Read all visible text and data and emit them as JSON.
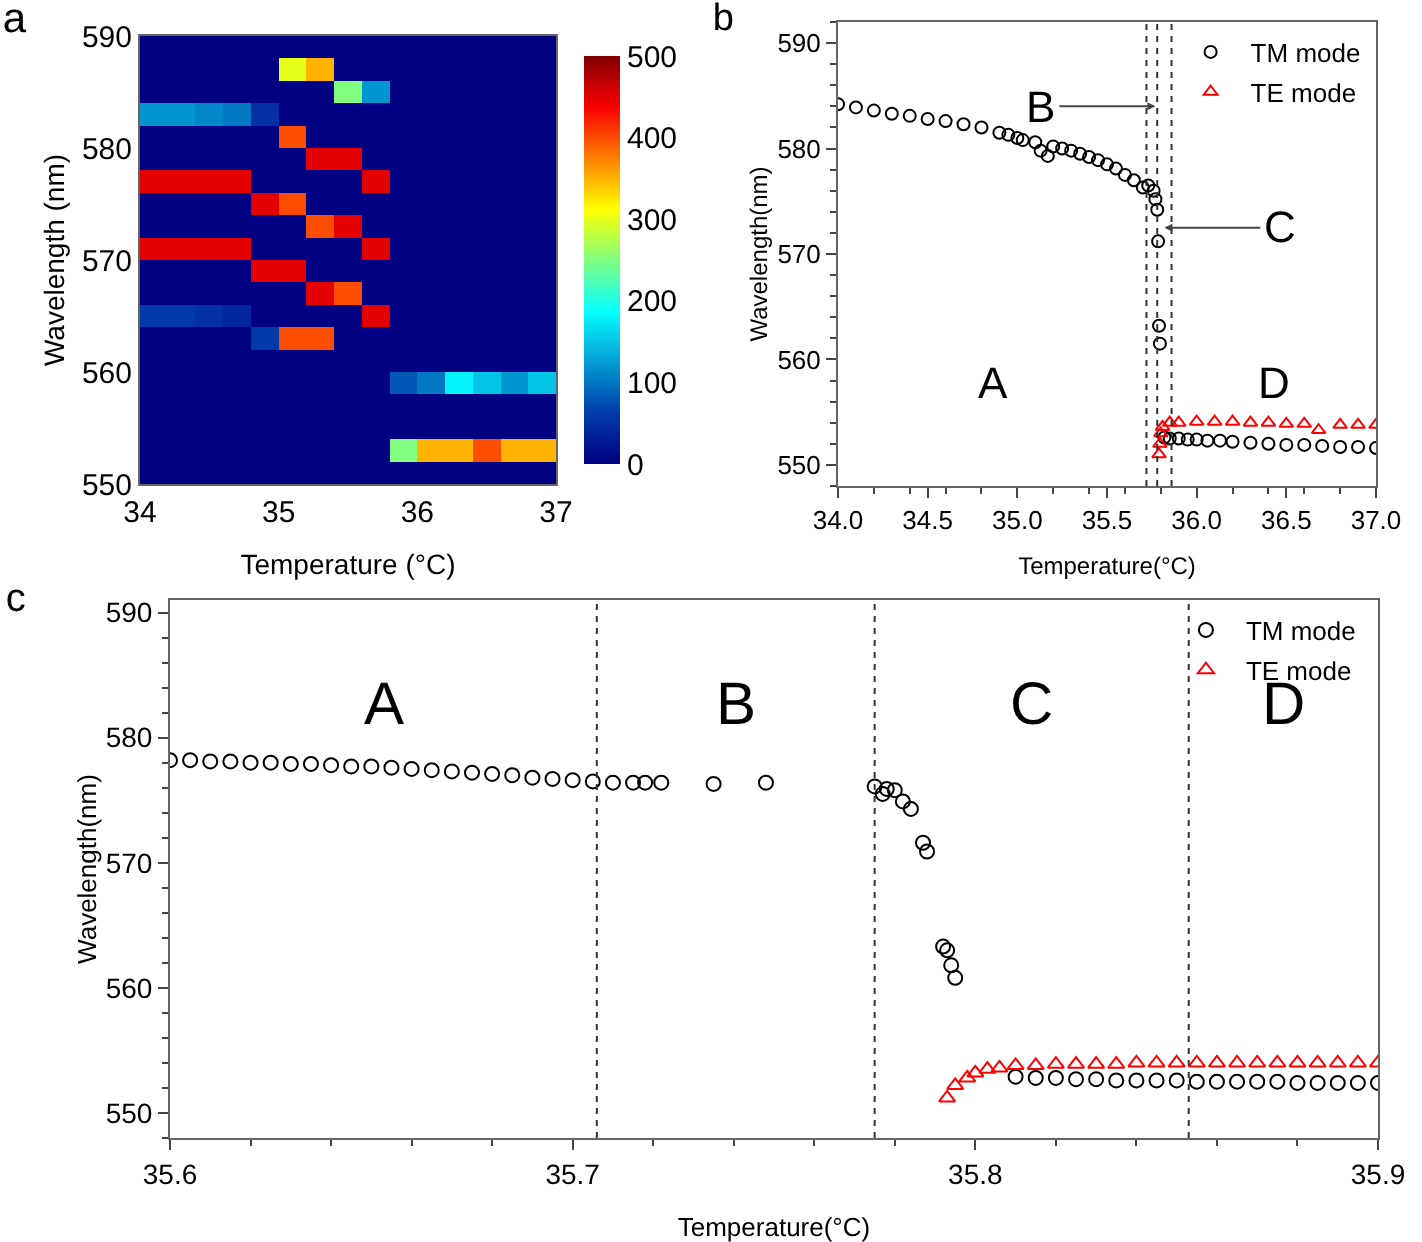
{
  "chart_data": [
    {
      "type": "heatmap",
      "title": "a",
      "xlabel": "Temperature (°C)",
      "ylabel": "Wavelength (nm)",
      "x": [
        34.1,
        34.3,
        34.5,
        34.7,
        34.9,
        35.1,
        35.3,
        35.5,
        35.7,
        35.9,
        36.1,
        36.3,
        36.5,
        36.7,
        36.9
      ],
      "cells": [
        [
          0,
          0,
          0,
          0,
          0,
          0,
          0,
          0,
          0,
          0,
          0,
          0,
          0,
          0,
          0
        ],
        [
          0,
          0,
          0,
          0,
          0,
          300,
          350,
          0,
          0,
          0,
          0,
          0,
          0,
          0,
          0
        ],
        [
          0,
          0,
          0,
          0,
          0,
          0,
          0,
          250,
          120,
          0,
          0,
          0,
          0,
          0,
          0
        ],
        [
          120,
          120,
          110,
          100,
          50,
          0,
          0,
          0,
          0,
          0,
          0,
          0,
          0,
          0,
          0
        ],
        [
          0,
          0,
          0,
          0,
          0,
          400,
          0,
          0,
          0,
          0,
          0,
          0,
          0,
          0,
          0
        ],
        [
          0,
          0,
          0,
          0,
          0,
          0,
          450,
          450,
          0,
          0,
          0,
          0,
          0,
          0,
          0
        ],
        [
          450,
          450,
          450,
          450,
          0,
          0,
          0,
          0,
          450,
          0,
          0,
          0,
          0,
          0,
          0
        ],
        [
          0,
          0,
          0,
          0,
          450,
          400,
          0,
          0,
          0,
          0,
          0,
          0,
          0,
          0,
          0
        ],
        [
          0,
          0,
          0,
          0,
          0,
          0,
          400,
          450,
          0,
          0,
          0,
          0,
          0,
          0,
          0
        ],
        [
          450,
          450,
          450,
          450,
          0,
          0,
          0,
          0,
          450,
          0,
          0,
          0,
          0,
          0,
          0
        ],
        [
          0,
          0,
          0,
          0,
          450,
          450,
          0,
          0,
          0,
          0,
          0,
          0,
          0,
          0,
          0
        ],
        [
          0,
          0,
          0,
          0,
          0,
          0,
          450,
          400,
          0,
          0,
          0,
          0,
          0,
          0,
          0
        ],
        [
          60,
          60,
          50,
          40,
          0,
          0,
          0,
          0,
          450,
          0,
          0,
          0,
          0,
          0,
          0
        ],
        [
          0,
          0,
          0,
          0,
          60,
          400,
          400,
          0,
          0,
          0,
          0,
          0,
          0,
          0,
          0
        ],
        [
          0,
          0,
          0,
          0,
          0,
          0,
          0,
          0,
          0,
          0,
          0,
          0,
          0,
          0,
          0
        ],
        [
          0,
          0,
          0,
          0,
          0,
          0,
          0,
          0,
          0,
          80,
          100,
          180,
          150,
          120,
          150
        ],
        [
          0,
          0,
          0,
          0,
          0,
          0,
          0,
          0,
          0,
          0,
          0,
          0,
          0,
          0,
          0
        ],
        [
          0,
          0,
          0,
          0,
          0,
          0,
          0,
          0,
          0,
          0,
          0,
          0,
          0,
          0,
          0
        ],
        [
          0,
          0,
          0,
          0,
          0,
          0,
          0,
          0,
          0,
          250,
          350,
          350,
          400,
          350,
          350
        ],
        [
          0,
          0,
          0,
          0,
          0,
          0,
          0,
          0,
          0,
          0,
          0,
          0,
          0,
          0,
          0
        ]
      ],
      "xlim": [
        34,
        37
      ],
      "ylim": [
        550,
        590
      ],
      "xticks": [
        34,
        35,
        36,
        37
      ],
      "yticks": [
        550,
        560,
        570,
        580,
        590
      ],
      "clim": [
        0,
        500
      ],
      "cticks": [
        0,
        100,
        200,
        300,
        400,
        500
      ]
    },
    {
      "type": "scatter",
      "title": "b",
      "xlabel": "Temperature(°C)",
      "ylabel": "Wavelength(nm)",
      "legend": "top right",
      "series": [
        {
          "name": "TM mode",
          "color": "#000000",
          "marker": "circle",
          "x": [
            34.0,
            34.1,
            34.2,
            34.3,
            34.4,
            34.5,
            34.6,
            34.7,
            34.8,
            34.9,
            34.95,
            35.0,
            35.03,
            35.1,
            35.13,
            35.17,
            35.2,
            35.25,
            35.3,
            35.35,
            35.4,
            35.45,
            35.5,
            35.55,
            35.6,
            35.65,
            35.7,
            35.73,
            35.76,
            35.77,
            35.78,
            35.785,
            35.79,
            35.795,
            35.8,
            35.82,
            35.85,
            35.9,
            35.95,
            36.0,
            36.06,
            36.13,
            36.2,
            36.3,
            36.4,
            36.5,
            36.6,
            36.7,
            36.8,
            36.9,
            37.0
          ],
          "values": [
            584.2,
            583.9,
            583.6,
            583.3,
            583.1,
            582.8,
            582.6,
            582.3,
            582.0,
            581.5,
            581.3,
            581.0,
            580.8,
            580.6,
            579.8,
            579.3,
            580.2,
            580.0,
            579.8,
            579.5,
            579.2,
            578.9,
            578.5,
            578.1,
            577.5,
            577.0,
            576.3,
            576.5,
            576.0,
            575.2,
            574.2,
            571.2,
            563.2,
            561.5,
            null,
            552.6,
            552.5,
            552.5,
            552.4,
            552.4,
            552.3,
            552.3,
            552.2,
            552.1,
            552.0,
            551.9,
            551.9,
            551.8,
            551.7,
            551.7,
            551.6
          ]
        },
        {
          "name": "TE mode",
          "color": "#ff0000",
          "marker": "triangle",
          "x": [
            35.79,
            35.795,
            35.8,
            35.81,
            35.85,
            35.9,
            36.0,
            36.1,
            36.2,
            36.3,
            36.4,
            36.5,
            36.6,
            36.68,
            36.8,
            36.9,
            37.0
          ],
          "values": [
            551.0,
            552.0,
            553.0,
            553.6,
            554.0,
            554.0,
            554.1,
            554.1,
            554.1,
            554.0,
            554.0,
            553.9,
            553.9,
            553.3,
            553.8,
            553.8,
            553.8
          ]
        }
      ],
      "ref_lines": [
        {
          "axis": "x",
          "value": 35.72,
          "line_style": "dotted"
        },
        {
          "axis": "x",
          "value": 35.78,
          "line_style": "dotted"
        },
        {
          "axis": "x",
          "value": 35.86,
          "line_style": "dotted"
        }
      ],
      "annotations": [
        "A",
        {
          "text": "B",
          "x": 35.77,
          "y": 584
        },
        {
          "text": "C",
          "x": 35.82,
          "y": 572.5
        },
        "D"
      ],
      "xlim": [
        34,
        37
      ],
      "ylim": [
        548,
        592
      ],
      "xticks": [
        {
          "value": 34,
          "label": "34.0"
        },
        34.5,
        {
          "value": 35,
          "label": "35.0"
        },
        35.5,
        {
          "value": 36,
          "label": "36.0"
        },
        36.5,
        {
          "value": 37,
          "label": "37.0"
        }
      ],
      "yticks": [
        550,
        560,
        570,
        580,
        590
      ]
    },
    {
      "type": "scatter",
      "title": "c",
      "xlabel": "Temperature(°C)",
      "ylabel": "Wavelength(nm)",
      "legend": "top right",
      "series": [
        {
          "name": "TM mode",
          "color": "#000000",
          "marker": "circle",
          "x": [
            35.6,
            35.605,
            35.61,
            35.615,
            35.62,
            35.625,
            35.63,
            35.635,
            35.64,
            35.645,
            35.65,
            35.655,
            35.66,
            35.665,
            35.67,
            35.675,
            35.68,
            35.685,
            35.69,
            35.695,
            35.7,
            35.705,
            35.71,
            35.715,
            35.718,
            35.722,
            35.735,
            35.748,
            35.775,
            35.777,
            35.778,
            35.78,
            35.782,
            35.784,
            35.787,
            35.788,
            35.792,
            35.793,
            35.794,
            35.795,
            35.81,
            35.815,
            35.82,
            35.825,
            35.83,
            35.835,
            35.84,
            35.845,
            35.85,
            35.855,
            35.86,
            35.865,
            35.87,
            35.875,
            35.88,
            35.885,
            35.89,
            35.895,
            35.9
          ],
          "values": [
            578.2,
            578.2,
            578.1,
            578.1,
            578.0,
            578.0,
            577.9,
            577.9,
            577.8,
            577.7,
            577.7,
            577.6,
            577.5,
            577.4,
            577.3,
            577.2,
            577.1,
            577.0,
            576.8,
            576.7,
            576.6,
            576.5,
            576.4,
            576.4,
            576.4,
            576.4,
            576.3,
            576.4,
            576.1,
            575.5,
            575.9,
            575.8,
            574.9,
            574.3,
            571.6,
            570.9,
            563.3,
            563.0,
            561.8,
            560.8,
            552.9,
            552.8,
            552.8,
            552.7,
            552.7,
            552.6,
            552.6,
            552.6,
            552.6,
            552.5,
            552.5,
            552.5,
            552.5,
            552.5,
            552.4,
            552.4,
            552.4,
            552.4,
            552.4
          ]
        },
        {
          "name": "TE mode",
          "color": "#ff0000",
          "marker": "triangle",
          "x": [
            35.793,
            35.795,
            35.798,
            35.8,
            35.803,
            35.806,
            35.81,
            35.815,
            35.82,
            35.825,
            35.83,
            35.835,
            35.84,
            35.845,
            35.85,
            35.855,
            35.86,
            35.865,
            35.87,
            35.875,
            35.88,
            35.885,
            35.89,
            35.895,
            35.9
          ],
          "values": [
            551.2,
            552.2,
            552.8,
            553.2,
            553.5,
            553.6,
            553.8,
            553.8,
            553.9,
            553.9,
            553.9,
            553.9,
            554.0,
            554.0,
            554.0,
            554.0,
            554.0,
            554.0,
            554.0,
            554.0,
            554.0,
            554.0,
            554.0,
            554.0,
            554.0
          ]
        }
      ],
      "ref_lines": [
        {
          "axis": "x",
          "value": 35.706,
          "line_style": "dotted"
        },
        {
          "axis": "x",
          "value": 35.775,
          "line_style": "dotted"
        },
        {
          "axis": "x",
          "value": 35.853,
          "line_style": "dotted"
        }
      ],
      "annotations": [
        "A",
        "B",
        "C",
        "D"
      ],
      "xlim": [
        35.6,
        35.9
      ],
      "ylim": [
        548,
        591
      ],
      "xticks": [
        35.6,
        35.7,
        35.8,
        35.9
      ],
      "yticks": [
        550,
        560,
        570,
        580,
        590
      ]
    }
  ]
}
